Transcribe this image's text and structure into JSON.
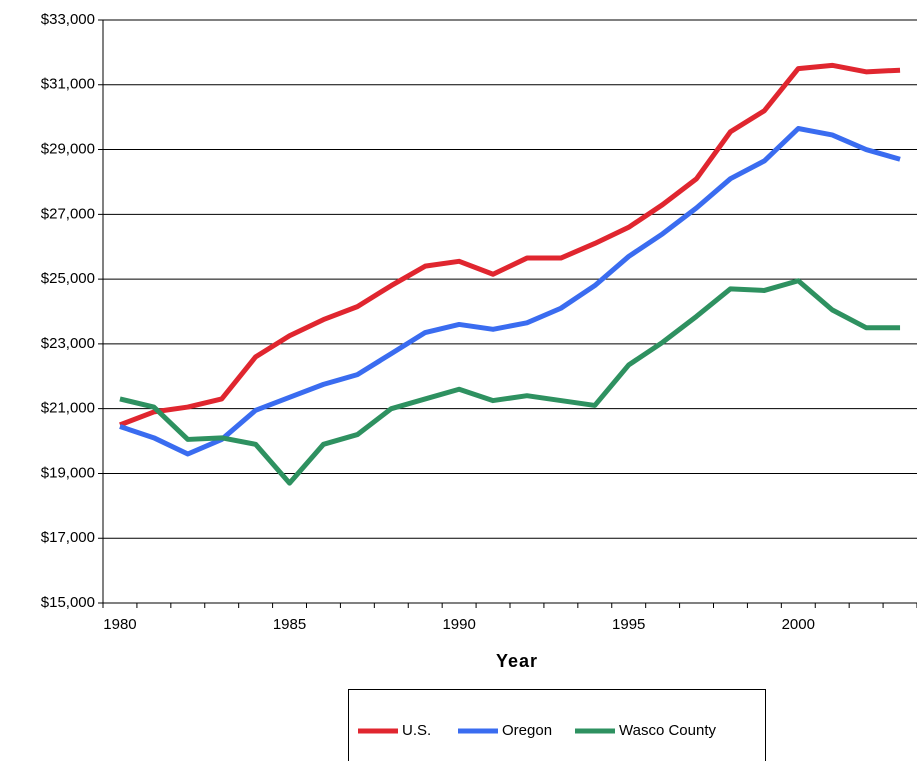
{
  "chart_data": {
    "type": "line",
    "x_label": "Year",
    "categories": [
      "1980",
      null,
      null,
      null,
      null,
      "1985",
      null,
      null,
      null,
      null,
      "1990",
      null,
      null,
      null,
      null,
      "1995",
      null,
      null,
      null,
      null,
      "2000",
      null,
      null,
      null
    ],
    "series": [
      {
        "name": "U.S.",
        "color": "#e0262f",
        "values": [
          20500,
          20900,
          21050,
          21300,
          22600,
          23250,
          23750,
          24150,
          24800,
          25400,
          25550,
          25150,
          25650,
          25650,
          26100,
          26600,
          27300,
          28100,
          29550,
          30200,
          31500,
          31600,
          31400,
          31450
        ]
      },
      {
        "name": "Oregon",
        "color": "#3a6cf0",
        "values": [
          20450,
          20100,
          19600,
          20050,
          20950,
          21350,
          21750,
          22050,
          22700,
          23350,
          23600,
          23450,
          23650,
          24100,
          24800,
          25700,
          26400,
          27200,
          28100,
          28650,
          29650,
          29450,
          29000,
          28700
        ]
      },
      {
        "name": "Wasco County",
        "color": "#2e9160",
        "values": [
          21300,
          21050,
          20050,
          20100,
          19900,
          18700,
          19900,
          20200,
          21000,
          21300,
          21600,
          21250,
          21400,
          21250,
          21100,
          22350,
          23050,
          23850,
          24700,
          24650,
          24950,
          24050,
          23500,
          23500
        ]
      }
    ],
    "ylim": [
      15000,
      33000
    ],
    "yticks": [
      {
        "value": 15000,
        "label": "$15,000"
      },
      {
        "value": 17000,
        "label": "$17,000"
      },
      {
        "value": 19000,
        "label": "$19,000"
      },
      {
        "value": 21000,
        "label": "$21,000"
      },
      {
        "value": 23000,
        "label": "$23,000"
      },
      {
        "value": 25000,
        "label": "$25,000"
      },
      {
        "value": 27000,
        "label": "$27,000"
      },
      {
        "value": 29000,
        "label": "$29,000"
      },
      {
        "value": 31000,
        "label": "$31,000"
      },
      {
        "value": 33000,
        "label": "$33,000"
      }
    ],
    "grid": true
  }
}
